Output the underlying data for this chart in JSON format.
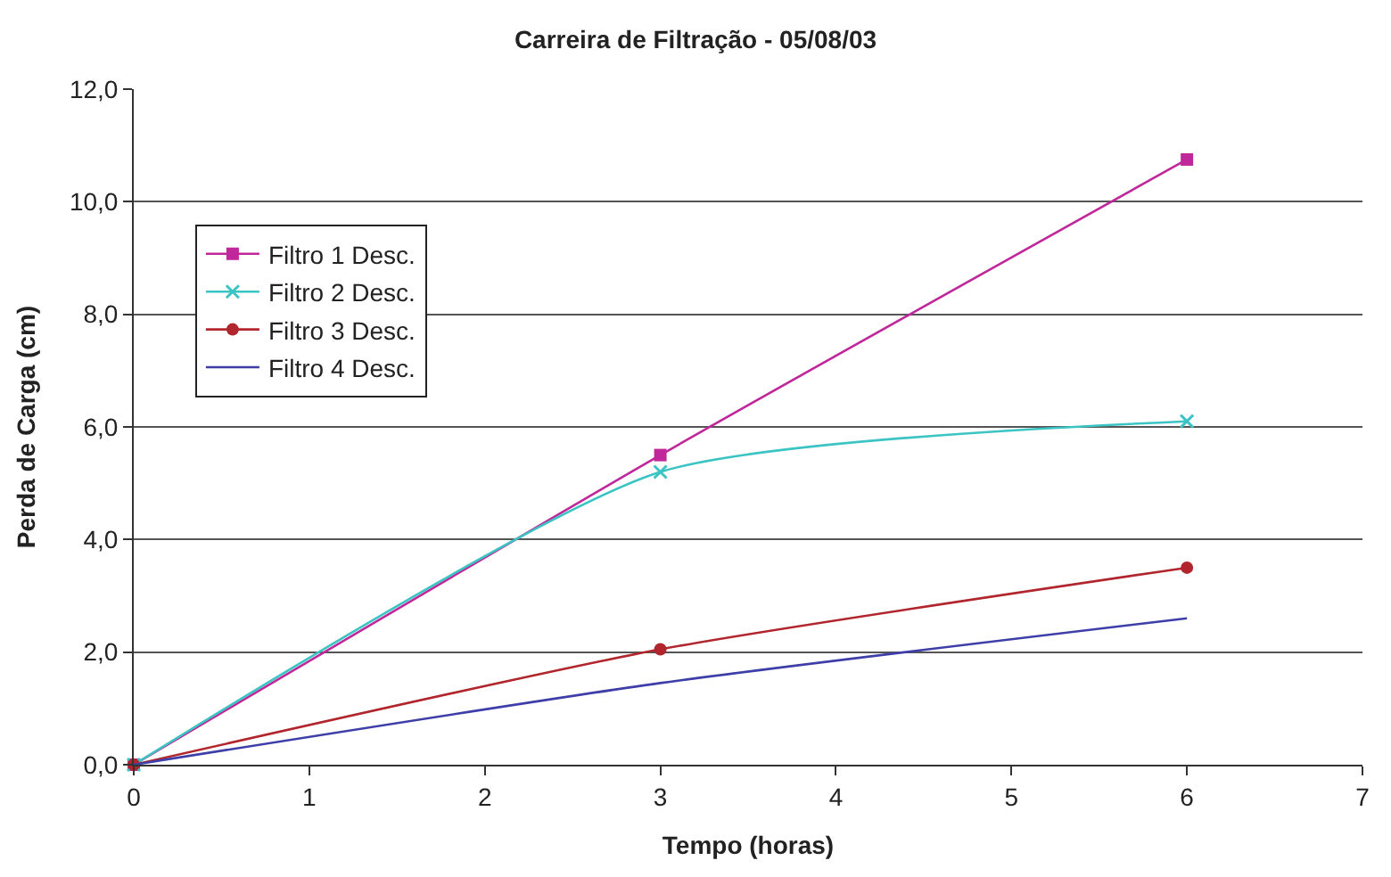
{
  "chart_data": {
    "type": "line",
    "title": "Carreira de Filtração - 05/08/03",
    "xlabel": "Tempo (horas)",
    "ylabel": "Perda de Carga (cm)",
    "x": [
      0,
      3,
      6
    ],
    "series": [
      {
        "name": "Filtro 1 Desc.",
        "color": "#c0279a",
        "marker": "square",
        "values": [
          0,
          5.5,
          10.75
        ]
      },
      {
        "name": "Filtro 2 Desc.",
        "color": "#3cc4c4",
        "marker": "cross",
        "values": [
          0,
          5.2,
          6.1
        ]
      },
      {
        "name": "Filtro 3 Desc.",
        "color": "#b0262c",
        "marker": "circle",
        "values": [
          0,
          2.05,
          3.5
        ]
      },
      {
        "name": "Filtro 4 Desc.",
        "color": "#3e3ea8",
        "marker": "none",
        "values": [
          0,
          1.45,
          2.6
        ]
      }
    ],
    "xlim": [
      0,
      7
    ],
    "xticks": [
      0,
      1,
      2,
      3,
      4,
      5,
      6,
      7
    ],
    "ylim": [
      0,
      12
    ],
    "yticks": [
      {
        "value": 0,
        "label": "0,0"
      },
      {
        "value": 2,
        "label": "2,0"
      },
      {
        "value": 4,
        "label": "4,0"
      },
      {
        "value": 6,
        "label": "6,0"
      },
      {
        "value": 8,
        "label": "8,0"
      },
      {
        "value": 10,
        "label": "10,0"
      },
      {
        "value": 12,
        "label": "12,0"
      }
    ],
    "grid": "y",
    "legend": "top left",
    "line_style": "solid"
  }
}
